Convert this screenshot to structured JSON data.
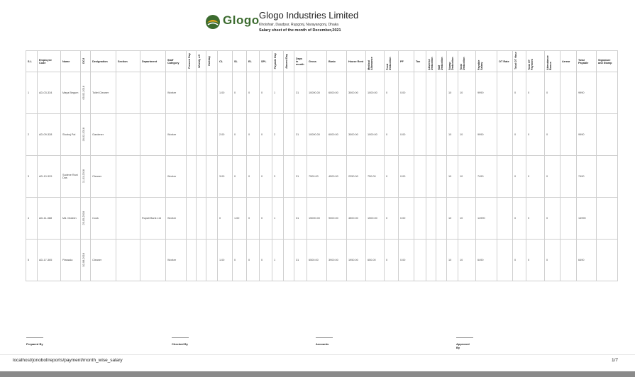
{
  "header": {
    "brand": "Glogo",
    "company": "Glogo Industries Limited",
    "address": "Khoishair, Daudpur, Rupgonj, Narayangonj, Dhaka",
    "subtitle": "Salary sheet of the month of December,2021"
  },
  "table": {
    "columns": [
      "S.L",
      "Employee Code",
      "Name",
      "DOJ",
      "Designation",
      "Section",
      "Department",
      "Staff Category",
      "Present Day",
      "Weekly off",
      "Holiday",
      "CL",
      "SL",
      "EL",
      "SPL",
      "Payable Day",
      "Absent Day",
      "Days in month",
      "Gross",
      "Basic",
      "House Rent",
      "Medical Allowance",
      "Food Deduction",
      "PF",
      "Tax",
      "Absense Deduction",
      "Half Deduction",
      "Stamp Deduction",
      "Total Deduction",
      "Payable Salary",
      "OT Rate",
      "Total OT Hour",
      "Total OT Payment",
      "Attendance Bonus",
      "Arrear",
      "Total Payable",
      "Signature and Stamp"
    ],
    "rows": [
      [
        "1",
        "AD-03-334",
        "Maya Begum",
        "09-02-2018",
        "Toilet Cleaner",
        null,
        null,
        "Worker",
        null,
        null,
        null,
        "1.00",
        "0",
        "0",
        "0",
        "1",
        null,
        "31",
        "10000.00",
        "6000.00",
        "3000.00",
        "1000.00",
        "0",
        "0.00",
        null,
        null,
        null,
        "10",
        "10",
        "9990",
        null,
        "0",
        "0",
        "0",
        null,
        "9990",
        null
      ],
      [
        "2",
        "AD-09-328",
        "Shobuj Pal",
        "18-02-2018",
        "Gardener",
        null,
        null,
        "Worker",
        null,
        null,
        null,
        "2.00",
        "0",
        "0",
        "0",
        "2",
        null,
        "31",
        "10000.00",
        "6000.00",
        "3000.00",
        "1000.00",
        "0",
        "0.00",
        null,
        null,
        null,
        "10",
        "10",
        "9990",
        null,
        "0",
        "0",
        "0",
        null,
        "9990",
        null
      ],
      [
        "3",
        "AD-10-329",
        "Sudeve Rani Das",
        "11-03-2018",
        "Cleaner",
        null,
        null,
        "Worker",
        null,
        null,
        null,
        "3.00",
        "0",
        "0",
        "0",
        "3",
        null,
        "31",
        "7500.00",
        "4500.00",
        "2250.00",
        "750.00",
        "0",
        "0.00",
        null,
        null,
        null,
        "10",
        "10",
        "7490",
        null,
        "0",
        "0",
        "0",
        null,
        "7490",
        null
      ],
      [
        "4",
        "AD-11-388",
        "Md. Mokbin",
        "25-05-2018",
        "Cook",
        null,
        "Rupali Bank Ltd",
        "Worker",
        null,
        null,
        null,
        "0",
        "1.00",
        "0",
        "0",
        "1",
        null,
        "31",
        "15000.00",
        "9000.00",
        "4500.00",
        "1500.00",
        "0",
        "0.00",
        null,
        null,
        null,
        "10",
        "10",
        "14990",
        null,
        "0",
        "0",
        "0",
        null,
        "14990",
        null
      ],
      [
        "5",
        "AD-17-365",
        "Piassala",
        "02-08-2018",
        "Cleaner",
        null,
        null,
        "Worker",
        null,
        null,
        null,
        "1.00",
        "0",
        "0",
        "0",
        "1",
        null,
        "31",
        "6500.00",
        "3900.00",
        "1950.00",
        "650.00",
        "0",
        "0.00",
        null,
        null,
        null,
        "10",
        "10",
        "6490",
        null,
        "0",
        "0",
        "0",
        null,
        "6490",
        null
      ]
    ]
  },
  "signatures": [
    "Prepared By",
    "Checked By",
    "Accounts",
    "Approved By"
  ],
  "footer": {
    "url": "localhost/jonobol/reports/payment/month_wise_salary",
    "page": "1/7"
  }
}
